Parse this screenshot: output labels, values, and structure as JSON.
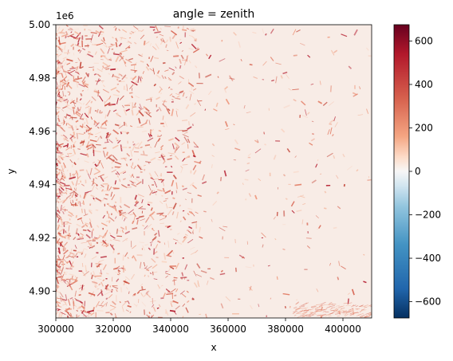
{
  "chart_data": {
    "type": "heatmap",
    "title": "angle = zenith",
    "xlabel": "x",
    "ylabel": "y",
    "y_offset_label": "1e6",
    "xlim": [
      300000,
      410000
    ],
    "ylim": [
      4890000,
      5000000
    ],
    "x_ticks": [
      300000,
      320000,
      340000,
      360000,
      380000,
      400000
    ],
    "x_tick_labels": [
      "300000",
      "320000",
      "340000",
      "360000",
      "380000",
      "400000"
    ],
    "y_ticks": [
      4.9,
      4.92,
      4.94,
      4.96,
      4.98,
      5.0
    ],
    "y_tick_labels": [
      "4.90",
      "4.92",
      "4.94",
      "4.96",
      "4.98",
      "5.00"
    ],
    "colorbar": {
      "colormap": "RdBu_r",
      "range": [
        -675,
        675
      ],
      "ticks": [
        600,
        400,
        200,
        0,
        -200,
        -400,
        -600
      ],
      "tick_labels": [
        "600",
        "400",
        "200",
        "0",
        "−200",
        "−400",
        "−600"
      ]
    },
    "description_values": {
      "background_value": 30,
      "terrain_region": "mountainous terrain concentrated on the west half, flat plain on the east",
      "dominant_value_range": [
        0,
        400
      ]
    }
  },
  "colors": {
    "low": "#053061",
    "mid": "#f7f7f7",
    "high": "#67001f",
    "background_tint": "#f8ece6",
    "relief": "#d6604d"
  }
}
